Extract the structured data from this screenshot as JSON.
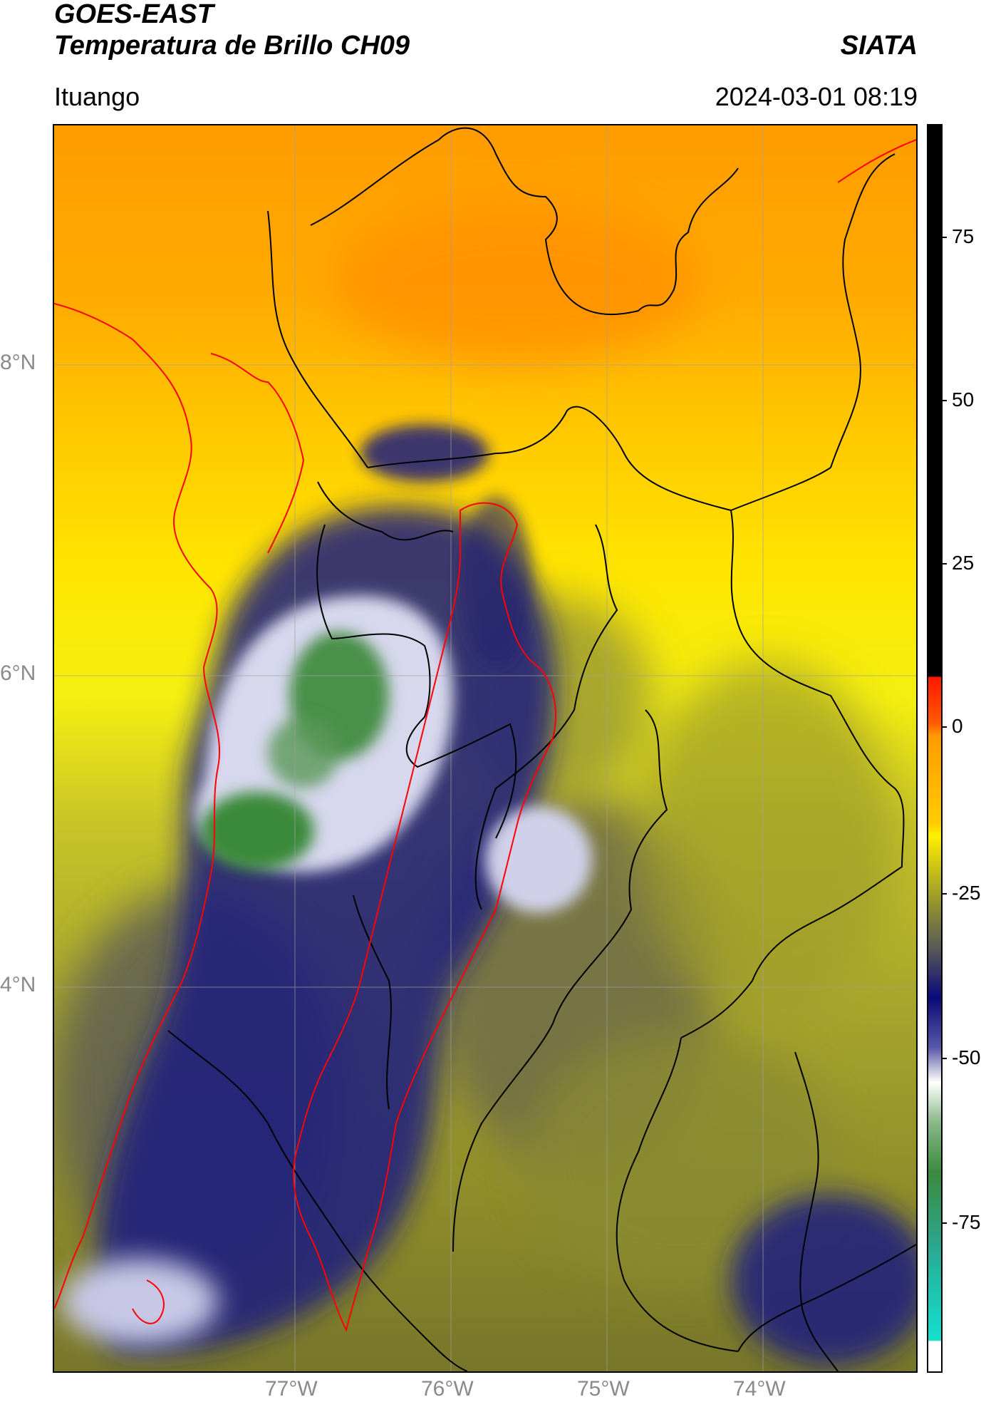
{
  "header": {
    "title_line1": "GOES-EAST",
    "title_line2": "Temperatura de Brillo CH09",
    "org": "SIATA",
    "location": "Ituango",
    "datetime": "2024-03-01 08:19"
  },
  "axes": {
    "lat_labels": [
      "8°N",
      "6°N",
      "4°N"
    ],
    "lon_labels": [
      "77°W",
      "76°W",
      "75°W",
      "74°W"
    ]
  },
  "colorbar": {
    "tick_labels": [
      "75",
      "50",
      "25",
      "0",
      "-25",
      "-50",
      "-75"
    ],
    "colors": {
      "black": "#000000",
      "red": "#ff1a00",
      "orange": "#ff9a00",
      "yellow": "#ffef00",
      "olive": "#8c8c2a",
      "gray": "#5a5a58",
      "navy": "#0a0a7a",
      "white": "#ffffff",
      "green": "#3c8a3c",
      "cyan": "#12e0d0"
    }
  },
  "map_legend": {
    "border_colors": {
      "department_lines": "#000000",
      "region_outline": "#ff0000"
    }
  }
}
